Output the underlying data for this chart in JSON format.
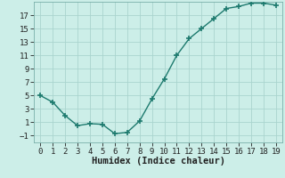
{
  "x": [
    0,
    1,
    2,
    3,
    4,
    5,
    6,
    7,
    8,
    9,
    10,
    11,
    12,
    13,
    14,
    15,
    16,
    17,
    18,
    19
  ],
  "y": [
    5,
    4,
    2,
    0.5,
    0.8,
    0.7,
    -0.7,
    -0.5,
    1.2,
    4.5,
    7.5,
    11,
    13.5,
    15,
    16.5,
    18,
    18.3,
    18.8,
    18.8,
    18.5
  ],
  "xlabel": "Humidex (Indice chaleur)",
  "xlim": [
    -0.5,
    19.5
  ],
  "ylim": [
    -2,
    19
  ],
  "xticks": [
    0,
    1,
    2,
    3,
    4,
    5,
    6,
    7,
    8,
    9,
    10,
    11,
    12,
    13,
    14,
    15,
    16,
    17,
    18,
    19
  ],
  "yticks": [
    -1,
    1,
    3,
    5,
    7,
    9,
    11,
    13,
    15,
    17
  ],
  "line_color": "#1d7a6e",
  "bg_color": "#cceee8",
  "grid_color": "#aad4ce",
  "spine_color": "#7ab0aa",
  "tick_label_fontsize": 6.5,
  "xlabel_fontsize": 7.5,
  "line_width": 1.0,
  "marker_size": 4.0
}
